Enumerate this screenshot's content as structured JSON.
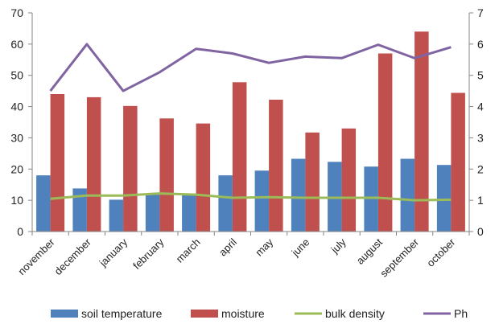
{
  "chart_data": {
    "type": "bar",
    "categories": [
      "november",
      "december",
      "january",
      "february",
      "march",
      "april",
      "may",
      "june",
      "july",
      "august",
      "september",
      "october"
    ],
    "series": [
      {
        "name": "soil temperature",
        "kind": "bar",
        "axis": "left",
        "color": "#4F81BD",
        "values": [
          18.0,
          13.8,
          10.2,
          11.8,
          12.2,
          18.0,
          19.5,
          23.3,
          22.3,
          20.8,
          23.3,
          21.3
        ]
      },
      {
        "name": "moisture",
        "kind": "bar",
        "axis": "left",
        "color": "#C0504D",
        "values": [
          44.0,
          43.0,
          40.2,
          36.2,
          34.6,
          47.8,
          42.2,
          31.7,
          33.0,
          57.0,
          64.0,
          44.4
        ]
      },
      {
        "name": "bulk density",
        "kind": "line",
        "axis": "right",
        "color": "#9BBB59",
        "values": [
          1.05,
          1.15,
          1.15,
          1.22,
          1.18,
          1.08,
          1.1,
          1.08,
          1.08,
          1.08,
          1.0,
          1.02
        ]
      },
      {
        "name": "Ph",
        "kind": "line",
        "axis": "right",
        "color": "#8064A2",
        "values": [
          4.5,
          6.0,
          4.5,
          5.1,
          5.85,
          5.7,
          5.4,
          5.6,
          5.55,
          5.98,
          5.55,
          5.9
        ]
      }
    ],
    "y_left": {
      "min": 0,
      "max": 70,
      "ticks": [
        "0",
        "10",
        "20",
        "30",
        "40",
        "50",
        "60",
        "70"
      ]
    },
    "y_right": {
      "min": 0,
      "max": 7,
      "ticks": [
        "0",
        "1",
        "2",
        "3",
        "4",
        "5",
        "6",
        "7"
      ]
    },
    "grid": false,
    "legend_position": "bottom"
  }
}
